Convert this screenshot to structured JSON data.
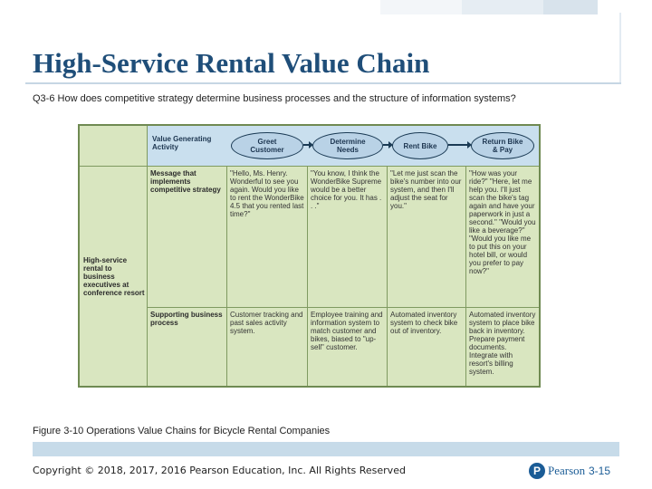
{
  "slide": {
    "title": "High-Service Rental Value Chain",
    "question": "Q3-6 How does competitive strategy determine business processes and the structure of information systems?",
    "caption": "Figure 3-10 Operations Value Chains for Bicycle Rental Companies",
    "copyright": "Copyright © 2018, 2017, 2016 Pearson Education, Inc. All Rights Reserved",
    "publisher": "Pearson",
    "slide_number": "3-15"
  },
  "colors": {
    "title": "#1f4e79",
    "figure_bg": "#d9e6c0",
    "header_bg": "#c9dfee",
    "accent_blue": "#1b5c96"
  },
  "figure": {
    "header_label": "Value Generating Activity",
    "activities": [
      "Greet Customer",
      "Determine Needs",
      "Rent Bike",
      "Return Bike & Pay"
    ],
    "row_group_label": "High-service rental to business executives at conference resort",
    "rows": [
      {
        "label": "Message that implements competitive strategy",
        "cells": [
          "\"Hello, Ms. Henry. Wonderful to see you again. Would you like to rent the WonderBike 4.5 that you rented last time?\"",
          "\"You know, I think the WonderBike Supreme would be a better choice for you. It has . . .\"",
          "\"Let me just scan the bike's number into our system, and then I'll adjust the seat for you.\"",
          "\"How was your ride?\" \"Here, let me help you. I'll just scan the bike's tag again and have your paperwork in just a second.\" \"Would you like a beverage?\" \"Would you like me to put this on your hotel bill, or would you prefer to pay now?\""
        ]
      },
      {
        "label": "Supporting business process",
        "cells": [
          "Customer tracking and past sales activity system.",
          "Employee training and information system to match customer and bikes, biased to \"up-sell\" customer.",
          "Automated inventory system to check bike out of inventory.",
          "Automated inventory system to place bike back in inventory. Prepare payment documents. Integrate with resort's billing system."
        ]
      }
    ]
  }
}
